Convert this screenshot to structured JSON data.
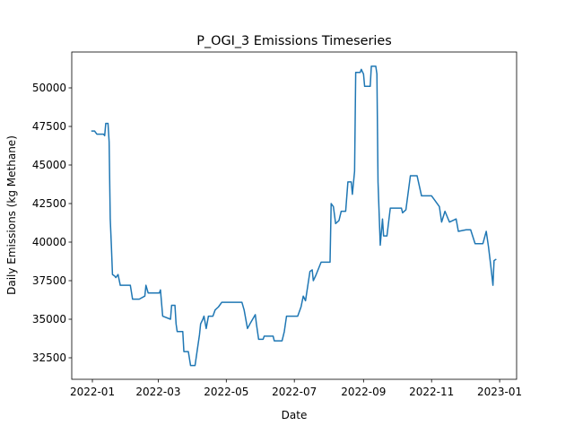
{
  "chart_data": {
    "type": "line",
    "title": "P_OGI_3 Emissions Timeseries",
    "x_label": "Date",
    "y_label": "Daily Emissions (kg Methane)",
    "x": [
      -1,
      2,
      4,
      10,
      11,
      12,
      14,
      15,
      16,
      17,
      18,
      20,
      21,
      23,
      25,
      34,
      36,
      42,
      47,
      48,
      50,
      60,
      61,
      63,
      70,
      71,
      74,
      75,
      76,
      81,
      82,
      86,
      88,
      92,
      94,
      96,
      97,
      99,
      100,
      102,
      104,
      108,
      110,
      113,
      116,
      123,
      134,
      136,
      139,
      142,
      146,
      147,
      149,
      153,
      154,
      162,
      163,
      170,
      172,
      174,
      184,
      187,
      189,
      191,
      195,
      197,
      198,
      200,
      205,
      213,
      214,
      216,
      218,
      221,
      223,
      227,
      229,
      232,
      233,
      235,
      236,
      240,
      241,
      243,
      244,
      249,
      250,
      254,
      255,
      256,
      258,
      260,
      261,
      264,
      267,
      277,
      278,
      281,
      285,
      291,
      295,
      304,
      307,
      311,
      313,
      316,
      320,
      326,
      328,
      335,
      339,
      343,
      350,
      353,
      355,
      357,
      359,
      360,
      362
    ],
    "values": [
      47200,
      47200,
      47000,
      47000,
      46900,
      47700,
      47700,
      46500,
      41500,
      39800,
      37900,
      37800,
      37700,
      37900,
      37200,
      37200,
      36300,
      36300,
      36500,
      37200,
      36700,
      36700,
      36900,
      35200,
      35000,
      35900,
      35900,
      34700,
      34200,
      34200,
      32900,
      32900,
      32000,
      32000,
      33000,
      34000,
      34700,
      35000,
      35200,
      34400,
      35200,
      35200,
      35600,
      35800,
      36100,
      36100,
      36100,
      35600,
      34400,
      34800,
      35300,
      34700,
      33700,
      33700,
      33900,
      33900,
      33600,
      33600,
      34200,
      35200,
      35200,
      35800,
      36500,
      36200,
      38100,
      38200,
      37500,
      37800,
      38700,
      38700,
      42500,
      42300,
      41200,
      41400,
      42000,
      42000,
      43900,
      43900,
      43100,
      44600,
      51000,
      51000,
      51200,
      50900,
      50100,
      50100,
      51400,
      51400,
      50900,
      43900,
      39800,
      41500,
      40400,
      40400,
      42200,
      42200,
      41900,
      42100,
      44300,
      44300,
      43000,
      43000,
      42700,
      42300,
      41300,
      42000,
      41300,
      41500,
      40700,
      40800,
      40800,
      39900,
      39900,
      40700,
      39700,
      38500,
      37200,
      38800,
      38900
    ],
    "color": "#1f77b4",
    "xlim": [
      -18.5,
      380.2
    ],
    "xticks": [
      {
        "value": 0,
        "label": "2022-01"
      },
      {
        "value": 59,
        "label": "2022-03"
      },
      {
        "value": 120,
        "label": "2022-05"
      },
      {
        "value": 181,
        "label": "2022-07"
      },
      {
        "value": 243,
        "label": "2022-09"
      },
      {
        "value": 304,
        "label": "2022-11"
      },
      {
        "value": 365,
        "label": "2023-01"
      }
    ],
    "ylim": [
      31105,
      52326
    ],
    "yticks": [
      32500,
      35000,
      37500,
      40000,
      42500,
      45000,
      47500,
      50000
    ],
    "grid": false
  }
}
